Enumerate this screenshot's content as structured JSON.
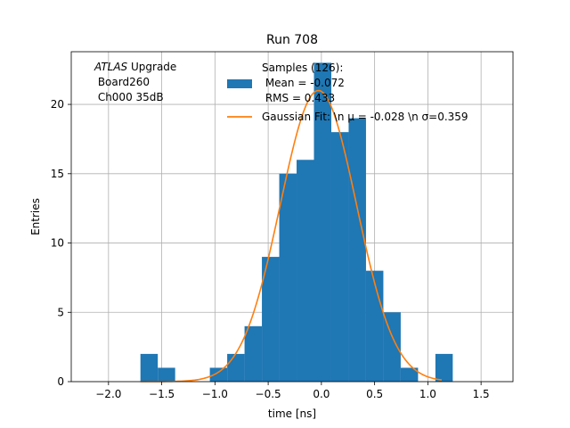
{
  "chart_data": {
    "type": "bar",
    "title": "Run 708",
    "xlabel": "time [ns]",
    "ylabel": "Entries",
    "xlim": [
      -2.35,
      1.8
    ],
    "ylim": [
      0,
      23.8
    ],
    "grid": true,
    "x_ticks": [
      -2.0,
      -1.5,
      -1.0,
      -0.5,
      0.0,
      0.5,
      1.0,
      1.5
    ],
    "x_tick_labels": [
      "−2.0",
      "−1.5",
      "−1.0",
      "−0.5",
      "0.0",
      "0.5",
      "1.0",
      "1.5"
    ],
    "y_ticks": [
      0,
      5,
      10,
      15,
      20
    ],
    "y_tick_labels": [
      "0",
      "5",
      "10",
      "15",
      "20"
    ],
    "annotation": {
      "italic": "ATLAS",
      "line1_rest": " Upgrade",
      "line2": " Board260",
      "line3": " Ch000 35dB"
    },
    "bin_width": 0.163,
    "series": [
      {
        "name": "Samples (126):\n Mean = -0.072\n RMS = 0.433",
        "kind": "histogram",
        "color": "#1f77b4",
        "legend_lines": [
          "Samples (126):",
          " Mean = -0.072",
          " RMS = 0.433"
        ],
        "bins": [
          {
            "left": -1.7,
            "count": 2
          },
          {
            "left": -1.537,
            "count": 1
          },
          {
            "left": -1.374,
            "count": 0
          },
          {
            "left": -1.211,
            "count": 0
          },
          {
            "left": -1.048,
            "count": 1
          },
          {
            "left": -0.885,
            "count": 2
          },
          {
            "left": -0.722,
            "count": 4
          },
          {
            "left": -0.559,
            "count": 9
          },
          {
            "left": -0.396,
            "count": 15
          },
          {
            "left": -0.233,
            "count": 16
          },
          {
            "left": -0.07,
            "count": 23
          },
          {
            "left": 0.093,
            "count": 18
          },
          {
            "left": 0.256,
            "count": 19
          },
          {
            "left": 0.419,
            "count": 8
          },
          {
            "left": 0.582,
            "count": 5
          },
          {
            "left": 0.745,
            "count": 1
          },
          {
            "left": 0.908,
            "count": 0
          },
          {
            "left": 1.071,
            "count": 2
          }
        ]
      },
      {
        "name": "Gaussian Fit: \\n μ = -0.028 \\n σ=0.359",
        "kind": "line",
        "color": "#ff7f0e",
        "legend_text": "Gaussian Fit: \\n μ = -0.028 \\n σ=0.359",
        "mu": -0.028,
        "sigma": 0.359,
        "amplitude": 21.0,
        "x_range": [
          -1.7,
          1.13
        ]
      }
    ]
  }
}
